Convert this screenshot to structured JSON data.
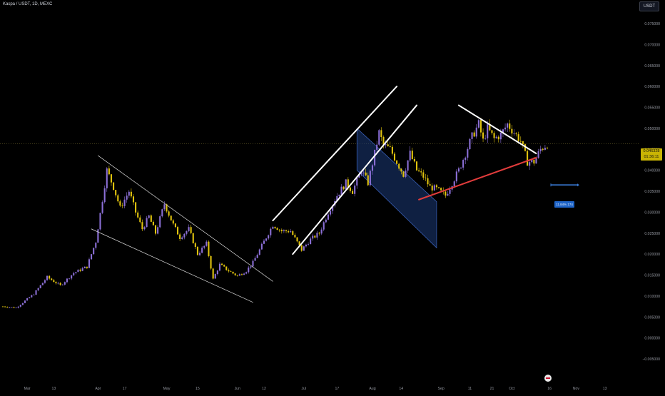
{
  "header": {
    "symbol_line": "Kaspa / USDT, 1D, MEXC",
    "currency_button": "USDT"
  },
  "price_tag": {
    "value": "0.046328",
    "countdown": "01:36:11"
  },
  "measure_tag": {
    "text": "11.84% 174"
  },
  "colors": {
    "background": "#000000",
    "candle_up": "#8b6fd6",
    "candle_down": "#e0c30e",
    "white_lines": "#ffffff",
    "support_line": "#e23c3c",
    "channel_fill": "#1b3a78",
    "measure": "#3a7bd5",
    "price_tag_bg": "#c9b404"
  },
  "chart_data": {
    "type": "candlestick",
    "title": "Kaspa / USDT, 1D, MEXC",
    "xlabel": "",
    "ylabel": "",
    "ylim": [
      -0.0035,
      0.0795
    ],
    "y_ticks": [
      "0.075000",
      "0.070000",
      "0.065000",
      "0.060000",
      "0.055000",
      "0.050000",
      "0.045000",
      "0.040000",
      "0.035000",
      "0.030000",
      "0.025000",
      "0.020000",
      "0.015000",
      "0.010000",
      "0.005000",
      "0.000000",
      "−0.005000"
    ],
    "x_ticks": [
      "Mar",
      "13",
      "Apr",
      "17",
      "May",
      "15",
      "Jun",
      "12",
      "Jul",
      "17",
      "Aug",
      "14",
      "Sep",
      "11",
      "21",
      "Oct",
      "16",
      "Nov",
      "13"
    ],
    "current_price": 0.046328,
    "series": [
      {
        "name": "",
        "anchors": [
          {
            "day": 0,
            "close": 0.0075
          },
          {
            "day": 6,
            "close": 0.0072
          },
          {
            "day": 14,
            "close": 0.0105
          },
          {
            "day": 20,
            "close": 0.0145
          },
          {
            "day": 26,
            "close": 0.0125
          },
          {
            "day": 32,
            "close": 0.0155
          },
          {
            "day": 38,
            "close": 0.017
          },
          {
            "day": 42,
            "close": 0.023
          },
          {
            "day": 45,
            "close": 0.033
          },
          {
            "day": 47,
            "close": 0.04
          },
          {
            "day": 50,
            "close": 0.036
          },
          {
            "day": 53,
            "close": 0.031
          },
          {
            "day": 57,
            "close": 0.035
          },
          {
            "day": 60,
            "close": 0.03
          },
          {
            "day": 63,
            "close": 0.026
          },
          {
            "day": 66,
            "close": 0.029
          },
          {
            "day": 69,
            "close": 0.025
          },
          {
            "day": 73,
            "close": 0.032
          },
          {
            "day": 77,
            "close": 0.027
          },
          {
            "day": 80,
            "close": 0.024
          },
          {
            "day": 84,
            "close": 0.026
          },
          {
            "day": 88,
            "close": 0.02
          },
          {
            "day": 92,
            "close": 0.0225
          },
          {
            "day": 95,
            "close": 0.014
          },
          {
            "day": 98,
            "close": 0.0175
          },
          {
            "day": 102,
            "close": 0.016
          },
          {
            "day": 106,
            "close": 0.0148
          },
          {
            "day": 110,
            "close": 0.016
          },
          {
            "day": 113,
            "close": 0.018
          },
          {
            "day": 118,
            "close": 0.023
          },
          {
            "day": 122,
            "close": 0.027
          },
          {
            "day": 126,
            "close": 0.0255
          },
          {
            "day": 130,
            "close": 0.0255
          },
          {
            "day": 135,
            "close": 0.021
          },
          {
            "day": 139,
            "close": 0.0235
          },
          {
            "day": 143,
            "close": 0.025
          },
          {
            "day": 147,
            "close": 0.03
          },
          {
            "day": 151,
            "close": 0.034
          },
          {
            "day": 155,
            "close": 0.037
          },
          {
            "day": 158,
            "close": 0.035
          },
          {
            "day": 162,
            "close": 0.04
          },
          {
            "day": 165,
            "close": 0.037
          },
          {
            "day": 168,
            "close": 0.044
          },
          {
            "day": 170,
            "close": 0.049
          },
          {
            "day": 172,
            "close": 0.046
          },
          {
            "day": 175,
            "close": 0.045
          },
          {
            "day": 178,
            "close": 0.042
          },
          {
            "day": 181,
            "close": 0.039
          },
          {
            "day": 184,
            "close": 0.044
          },
          {
            "day": 187,
            "close": 0.04
          },
          {
            "day": 190,
            "close": 0.0385
          },
          {
            "day": 193,
            "close": 0.036
          },
          {
            "day": 196,
            "close": 0.0355
          },
          {
            "day": 200,
            "close": 0.034
          },
          {
            "day": 203,
            "close": 0.037
          },
          {
            "day": 206,
            "close": 0.04
          },
          {
            "day": 209,
            "close": 0.044
          },
          {
            "day": 212,
            "close": 0.048
          },
          {
            "day": 215,
            "close": 0.051
          },
          {
            "day": 217,
            "close": 0.047
          },
          {
            "day": 219,
            "close": 0.05
          },
          {
            "day": 222,
            "close": 0.0475
          },
          {
            "day": 225,
            "close": 0.0485
          },
          {
            "day": 228,
            "close": 0.051
          },
          {
            "day": 231,
            "close": 0.049
          },
          {
            "day": 234,
            "close": 0.047
          },
          {
            "day": 237,
            "close": 0.042
          },
          {
            "day": 240,
            "close": 0.042
          },
          {
            "day": 243,
            "close": 0.045
          },
          {
            "day": 246,
            "close": 0.0463
          }
        ]
      }
    ],
    "annotations": {
      "falling_wedge_upper": [
        [
          43,
          0.0435
        ],
        [
          122,
          0.0135
        ]
      ],
      "falling_wedge_lower": [
        [
          40,
          0.026
        ],
        [
          113,
          0.0085
        ]
      ],
      "rising_channel_upper": [
        [
          122,
          0.028
        ],
        [
          178,
          0.06
        ]
      ],
      "rising_channel_lower": [
        [
          131,
          0.02
        ],
        [
          187,
          0.0555
        ]
      ],
      "descending_channel": [
        [
          160,
          0.05
        ],
        [
          196,
          0.0325
        ],
        [
          196,
          0.0215
        ],
        [
          160,
          0.04
        ]
      ],
      "triangle_upper": [
        [
          206,
          0.0555
        ],
        [
          241,
          0.044
        ]
      ],
      "triangle_lower": [
        [
          188,
          0.033
        ],
        [
          241,
          0.043
        ]
      ],
      "measure_arrow_level": 0.0365
    }
  }
}
